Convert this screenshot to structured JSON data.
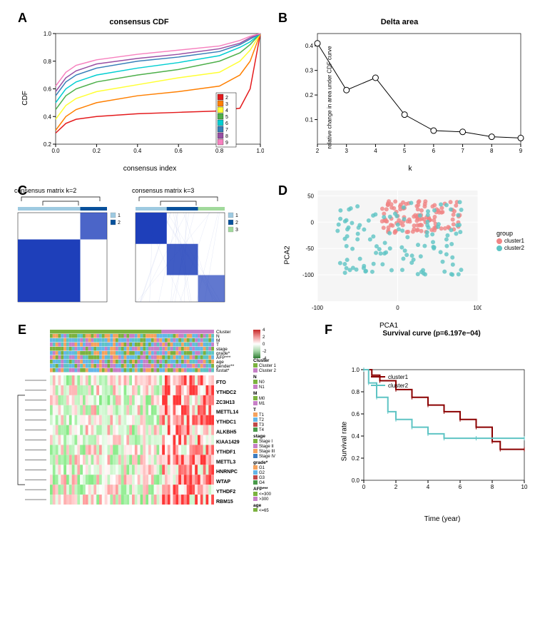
{
  "panelA": {
    "type": "line",
    "title": "consensus CDF",
    "xlabel": "consensus index",
    "ylabel": "CDF",
    "xlim": [
      0,
      1
    ],
    "ylim": [
      0.2,
      1.0
    ],
    "xticks": [
      0.0,
      0.2,
      0.4,
      0.6,
      0.8,
      1.0
    ],
    "yticks": [
      0.2,
      0.4,
      0.6,
      0.8,
      1.0
    ],
    "legend_labels": [
      "2",
      "3",
      "4",
      "5",
      "6",
      "7",
      "8",
      "9"
    ],
    "series_colors": [
      "#e41a1c",
      "#ff7f00",
      "#ffff33",
      "#4daf4a",
      "#00ced1",
      "#377eb8",
      "#984ea3",
      "#f781bf"
    ],
    "series": {
      "2": [
        [
          0,
          0.28
        ],
        [
          0.05,
          0.35
        ],
        [
          0.1,
          0.38
        ],
        [
          0.2,
          0.4
        ],
        [
          0.4,
          0.42
        ],
        [
          0.6,
          0.43
        ],
        [
          0.8,
          0.44
        ],
        [
          0.9,
          0.46
        ],
        [
          0.95,
          0.6
        ],
        [
          1.0,
          1.0
        ]
      ],
      "3": [
        [
          0,
          0.3
        ],
        [
          0.05,
          0.4
        ],
        [
          0.1,
          0.45
        ],
        [
          0.2,
          0.5
        ],
        [
          0.4,
          0.55
        ],
        [
          0.6,
          0.58
        ],
        [
          0.8,
          0.62
        ],
        [
          0.9,
          0.7
        ],
        [
          0.95,
          0.8
        ],
        [
          1.0,
          1.0
        ]
      ],
      "4": [
        [
          0,
          0.38
        ],
        [
          0.05,
          0.48
        ],
        [
          0.1,
          0.53
        ],
        [
          0.2,
          0.58
        ],
        [
          0.4,
          0.63
        ],
        [
          0.6,
          0.68
        ],
        [
          0.8,
          0.72
        ],
        [
          0.9,
          0.8
        ],
        [
          0.95,
          0.88
        ],
        [
          1.0,
          1.0
        ]
      ],
      "5": [
        [
          0,
          0.45
        ],
        [
          0.05,
          0.55
        ],
        [
          0.1,
          0.6
        ],
        [
          0.2,
          0.65
        ],
        [
          0.4,
          0.7
        ],
        [
          0.6,
          0.74
        ],
        [
          0.8,
          0.8
        ],
        [
          0.9,
          0.86
        ],
        [
          0.95,
          0.92
        ],
        [
          1.0,
          1.0
        ]
      ],
      "6": [
        [
          0,
          0.5
        ],
        [
          0.05,
          0.6
        ],
        [
          0.1,
          0.65
        ],
        [
          0.2,
          0.7
        ],
        [
          0.4,
          0.75
        ],
        [
          0.6,
          0.79
        ],
        [
          0.8,
          0.84
        ],
        [
          0.9,
          0.9
        ],
        [
          0.95,
          0.94
        ],
        [
          1.0,
          1.0
        ]
      ],
      "7": [
        [
          0,
          0.55
        ],
        [
          0.05,
          0.65
        ],
        [
          0.1,
          0.7
        ],
        [
          0.2,
          0.75
        ],
        [
          0.4,
          0.8
        ],
        [
          0.6,
          0.83
        ],
        [
          0.8,
          0.87
        ],
        [
          0.9,
          0.92
        ],
        [
          0.95,
          0.96
        ],
        [
          1.0,
          1.0
        ]
      ],
      "8": [
        [
          0,
          0.58
        ],
        [
          0.05,
          0.68
        ],
        [
          0.1,
          0.73
        ],
        [
          0.2,
          0.78
        ],
        [
          0.4,
          0.82
        ],
        [
          0.6,
          0.85
        ],
        [
          0.8,
          0.89
        ],
        [
          0.9,
          0.93
        ],
        [
          0.95,
          0.97
        ],
        [
          1.0,
          1.0
        ]
      ],
      "9": [
        [
          0,
          0.62
        ],
        [
          0.05,
          0.72
        ],
        [
          0.1,
          0.77
        ],
        [
          0.2,
          0.81
        ],
        [
          0.4,
          0.85
        ],
        [
          0.6,
          0.88
        ],
        [
          0.8,
          0.91
        ],
        [
          0.9,
          0.95
        ],
        [
          0.95,
          0.98
        ],
        [
          1.0,
          1.0
        ]
      ]
    },
    "title_fontsize": 11,
    "label_fontsize": 10,
    "line_width": 1.5
  },
  "panelB": {
    "type": "line",
    "title": "Delta area",
    "xlabel": "k",
    "ylabel": "relative change in area under CDF curve",
    "xlim": [
      2,
      9
    ],
    "ylim": [
      0,
      0.45
    ],
    "xticks": [
      2,
      3,
      4,
      5,
      6,
      7,
      8,
      9
    ],
    "yticks": [
      0.1,
      0.2,
      0.3,
      0.4
    ],
    "points": [
      [
        2,
        0.41
      ],
      [
        3,
        0.22
      ],
      [
        4,
        0.27
      ],
      [
        5,
        0.12
      ],
      [
        6,
        0.055
      ],
      [
        7,
        0.05
      ],
      [
        8,
        0.03
      ],
      [
        9,
        0.025
      ]
    ],
    "line_color": "#000000",
    "marker": "circle",
    "marker_fill": "#ffffff",
    "marker_size": 4,
    "line_width": 1
  },
  "panelC": {
    "type": "heatmap-matrices",
    "matrices": [
      {
        "title": "consensus matrix k=2",
        "block_colors": [
          "#1e3fba",
          "#a9d5ed"
        ],
        "legend": [
          "1",
          "2"
        ],
        "legend_colors": [
          "#9ecae1",
          "#08519c"
        ],
        "block_split": 0.7
      },
      {
        "title": "consensus matrix k=3",
        "block_colors": [
          "#1e3fba",
          "#a9d5ed",
          "#ffffff"
        ],
        "legend": [
          "1",
          "2",
          "3"
        ],
        "legend_colors": [
          "#9ecae1",
          "#08519c",
          "#a1d99b"
        ],
        "block_splits": [
          0.35,
          0.7
        ]
      }
    ],
    "matrix_fill_high": "#1e3fba",
    "matrix_fill_low": "#ffffff"
  },
  "panelD": {
    "type": "scatter",
    "xlabel": "PCA1",
    "ylabel": "PCA2",
    "xlim": [
      -100,
      100
    ],
    "ylim": [
      -150,
      60
    ],
    "xticks": [
      -100,
      0,
      100
    ],
    "yticks": [
      -100,
      -50,
      0,
      50
    ],
    "legend_title": "group",
    "groups": [
      {
        "name": "cluster1",
        "color": "#f08585",
        "n": 120
      },
      {
        "name": "cluster2",
        "color": "#5ec4c4",
        "n": 120
      }
    ],
    "marker_size": 3,
    "grid_color": "#e8e8e8",
    "background_color": "#f5f5f5"
  },
  "panelE": {
    "type": "heatmap",
    "genes": [
      "FTO",
      "YTHDC2",
      "ZC3H13",
      "METTL14",
      "YTHDC1",
      "ALKBH5",
      "KIAA1429",
      "YTHDF1",
      "METTL3",
      "HNRNPC",
      "WTAP",
      "YTHDF2",
      "RBM15"
    ],
    "annotation_tracks": [
      "Cluster",
      "N",
      "M",
      "T",
      "stage",
      "grade*",
      "AFP***",
      "age",
      "gender**",
      "fustat*"
    ],
    "cluster_colors": {
      "Cluster 1": "#7bb23f",
      "Cluster 2": "#c77fc7"
    },
    "n_colors": {
      "N0": "#7bb23f",
      "N1": "#c77fc7"
    },
    "m_colors": {
      "M0": "#7bb23f",
      "M1": "#c77fc7"
    },
    "t_colors": {
      "T1": "#f5a25d",
      "T2": "#64b6e8",
      "T3": "#c04848",
      "T4": "#4a9a4a"
    },
    "stage_colors": {
      "Stage I": "#7bb23f",
      "Stage II": "#c77fc7",
      "Stage III": "#f5a25d",
      "Stage IV": "#3d7cc0"
    },
    "grade_colors": {
      "G1": "#f5a25d",
      "G2": "#64b6e8",
      "G3": "#c04848",
      "G4": "#4a9a4a"
    },
    "afp_colors": {
      "<=300": "#7bb23f",
      ">300": "#c77fc7"
    },
    "age_colors": {
      "<=65": "#7bb23f",
      ">65": "#c77fc7"
    },
    "gender_colors": {
      "FEMALE": "#7bb23f",
      "MALE": "#c77fc7"
    },
    "fustat_colors": {
      "Alive": "#7bb23f",
      "Dead": "#5ec4c4"
    },
    "colorbar_range": [
      -4,
      4
    ],
    "colorbar_ticks": [
      -4,
      -2,
      0,
      2,
      4
    ],
    "colorbar_colors": [
      "#2e7d32",
      "#a5d6a7",
      "#ffffff",
      "#ef9a9a",
      "#c62828"
    ],
    "cluster_split": 0.68
  },
  "panelF": {
    "type": "survival",
    "title": "Survival curve (p=6.197e−04)",
    "xlabel": "Time (year)",
    "ylabel": "Survival rate",
    "xlim": [
      0,
      10
    ],
    "ylim": [
      0,
      1.0
    ],
    "xticks": [
      0,
      2,
      4,
      6,
      8,
      10
    ],
    "yticks": [
      0.0,
      0.2,
      0.4,
      0.6,
      0.8,
      1.0
    ],
    "curves": [
      {
        "name": "cluster1",
        "color": "#8b0000",
        "points": [
          [
            0,
            1.0
          ],
          [
            0.5,
            0.95
          ],
          [
            1,
            0.9
          ],
          [
            2,
            0.82
          ],
          [
            3,
            0.75
          ],
          [
            4,
            0.68
          ],
          [
            5,
            0.62
          ],
          [
            6,
            0.55
          ],
          [
            7,
            0.48
          ],
          [
            8,
            0.35
          ],
          [
            8.5,
            0.28
          ],
          [
            10,
            0.28
          ]
        ]
      },
      {
        "name": "cluster2",
        "color": "#5ec4c4",
        "points": [
          [
            0,
            1.0
          ],
          [
            0.3,
            0.88
          ],
          [
            0.8,
            0.75
          ],
          [
            1.5,
            0.62
          ],
          [
            2,
            0.55
          ],
          [
            3,
            0.48
          ],
          [
            4,
            0.42
          ],
          [
            5,
            0.38
          ],
          [
            7,
            0.38
          ],
          [
            10,
            0.38
          ]
        ]
      }
    ],
    "line_width": 2
  }
}
